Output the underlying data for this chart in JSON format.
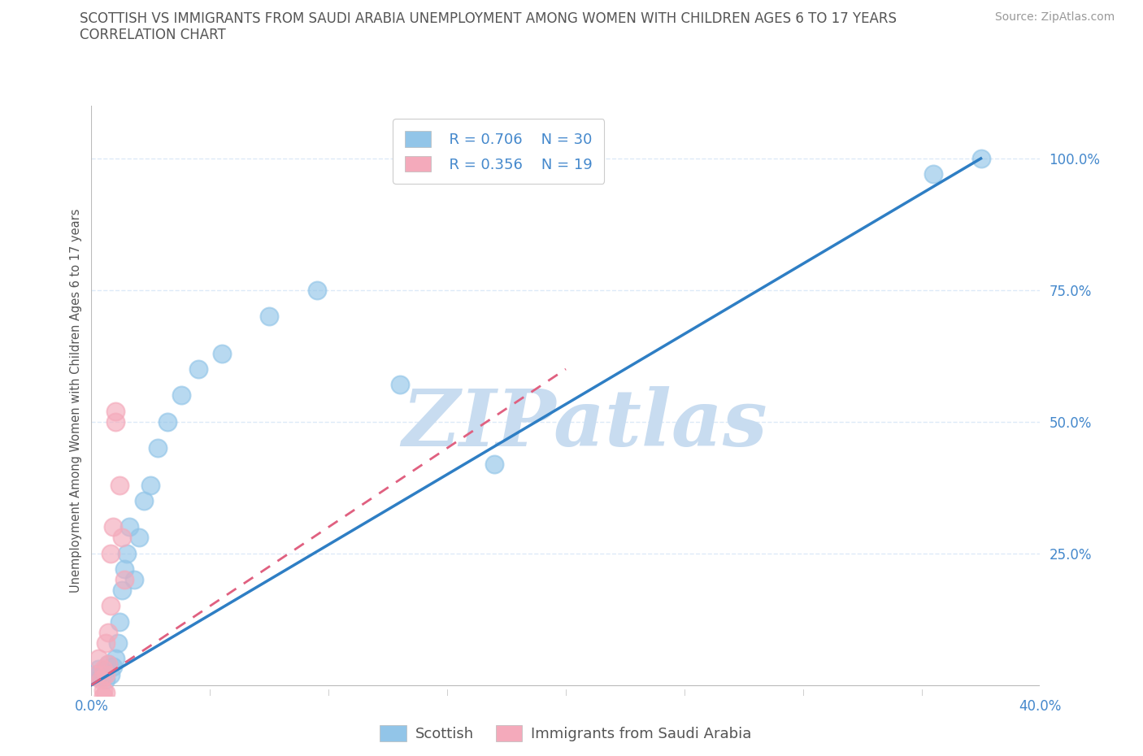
{
  "title_line1": "SCOTTISH VS IMMIGRANTS FROM SAUDI ARABIA UNEMPLOYMENT AMONG WOMEN WITH CHILDREN AGES 6 TO 17 YEARS",
  "title_line2": "CORRELATION CHART",
  "source": "Source: ZipAtlas.com",
  "ylabel": "Unemployment Among Women with Children Ages 6 to 17 years",
  "xlim": [
    0.0,
    0.4
  ],
  "ylim": [
    -0.02,
    1.1
  ],
  "xticks": [
    0.0,
    0.05,
    0.1,
    0.15,
    0.2,
    0.25,
    0.3,
    0.35,
    0.4
  ],
  "yticks": [
    0.0,
    0.25,
    0.5,
    0.75,
    1.0
  ],
  "legend_R1": "R = 0.706",
  "legend_N1": "N = 30",
  "legend_R2": "R = 0.356",
  "legend_N2": "N = 19",
  "blue_color": "#92C5E8",
  "pink_color": "#F4AABB",
  "line_blue": "#2E7EC4",
  "line_pink": "#E06080",
  "watermark": "ZIPatlas",
  "watermark_color": "#C8DCF0",
  "bg_color": "#FFFFFF",
  "grid_color": "#DDEAF8",
  "title_color": "#555555",
  "axis_color": "#4488CC",
  "blue_scatter_x": [
    0.002,
    0.003,
    0.004,
    0.005,
    0.006,
    0.007,
    0.008,
    0.009,
    0.01,
    0.011,
    0.012,
    0.013,
    0.014,
    0.015,
    0.016,
    0.018,
    0.02,
    0.022,
    0.025,
    0.028,
    0.032,
    0.038,
    0.045,
    0.055,
    0.075,
    0.095,
    0.13,
    0.17,
    0.355,
    0.375
  ],
  "blue_scatter_y": [
    0.02,
    0.03,
    0.015,
    0.025,
    0.01,
    0.04,
    0.02,
    0.035,
    0.05,
    0.08,
    0.12,
    0.18,
    0.22,
    0.25,
    0.3,
    0.2,
    0.28,
    0.35,
    0.38,
    0.45,
    0.5,
    0.55,
    0.6,
    0.63,
    0.7,
    0.75,
    0.57,
    0.42,
    0.97,
    1.0
  ],
  "pink_scatter_x": [
    0.002,
    0.003,
    0.004,
    0.005,
    0.006,
    0.006,
    0.007,
    0.007,
    0.008,
    0.008,
    0.009,
    0.01,
    0.01,
    0.012,
    0.013,
    0.014,
    0.005,
    0.005,
    0.006
  ],
  "pink_scatter_y": [
    0.02,
    0.05,
    0.01,
    0.03,
    0.02,
    0.08,
    0.04,
    0.1,
    0.15,
    0.25,
    0.3,
    0.5,
    0.52,
    0.38,
    0.28,
    0.2,
    -0.02,
    -0.01,
    -0.015
  ],
  "blue_regline_x": [
    0.0,
    0.375
  ],
  "blue_regline_y": [
    0.0,
    1.0
  ],
  "pink_regline_x": [
    0.0,
    0.2
  ],
  "pink_regline_y": [
    0.0,
    0.6
  ]
}
